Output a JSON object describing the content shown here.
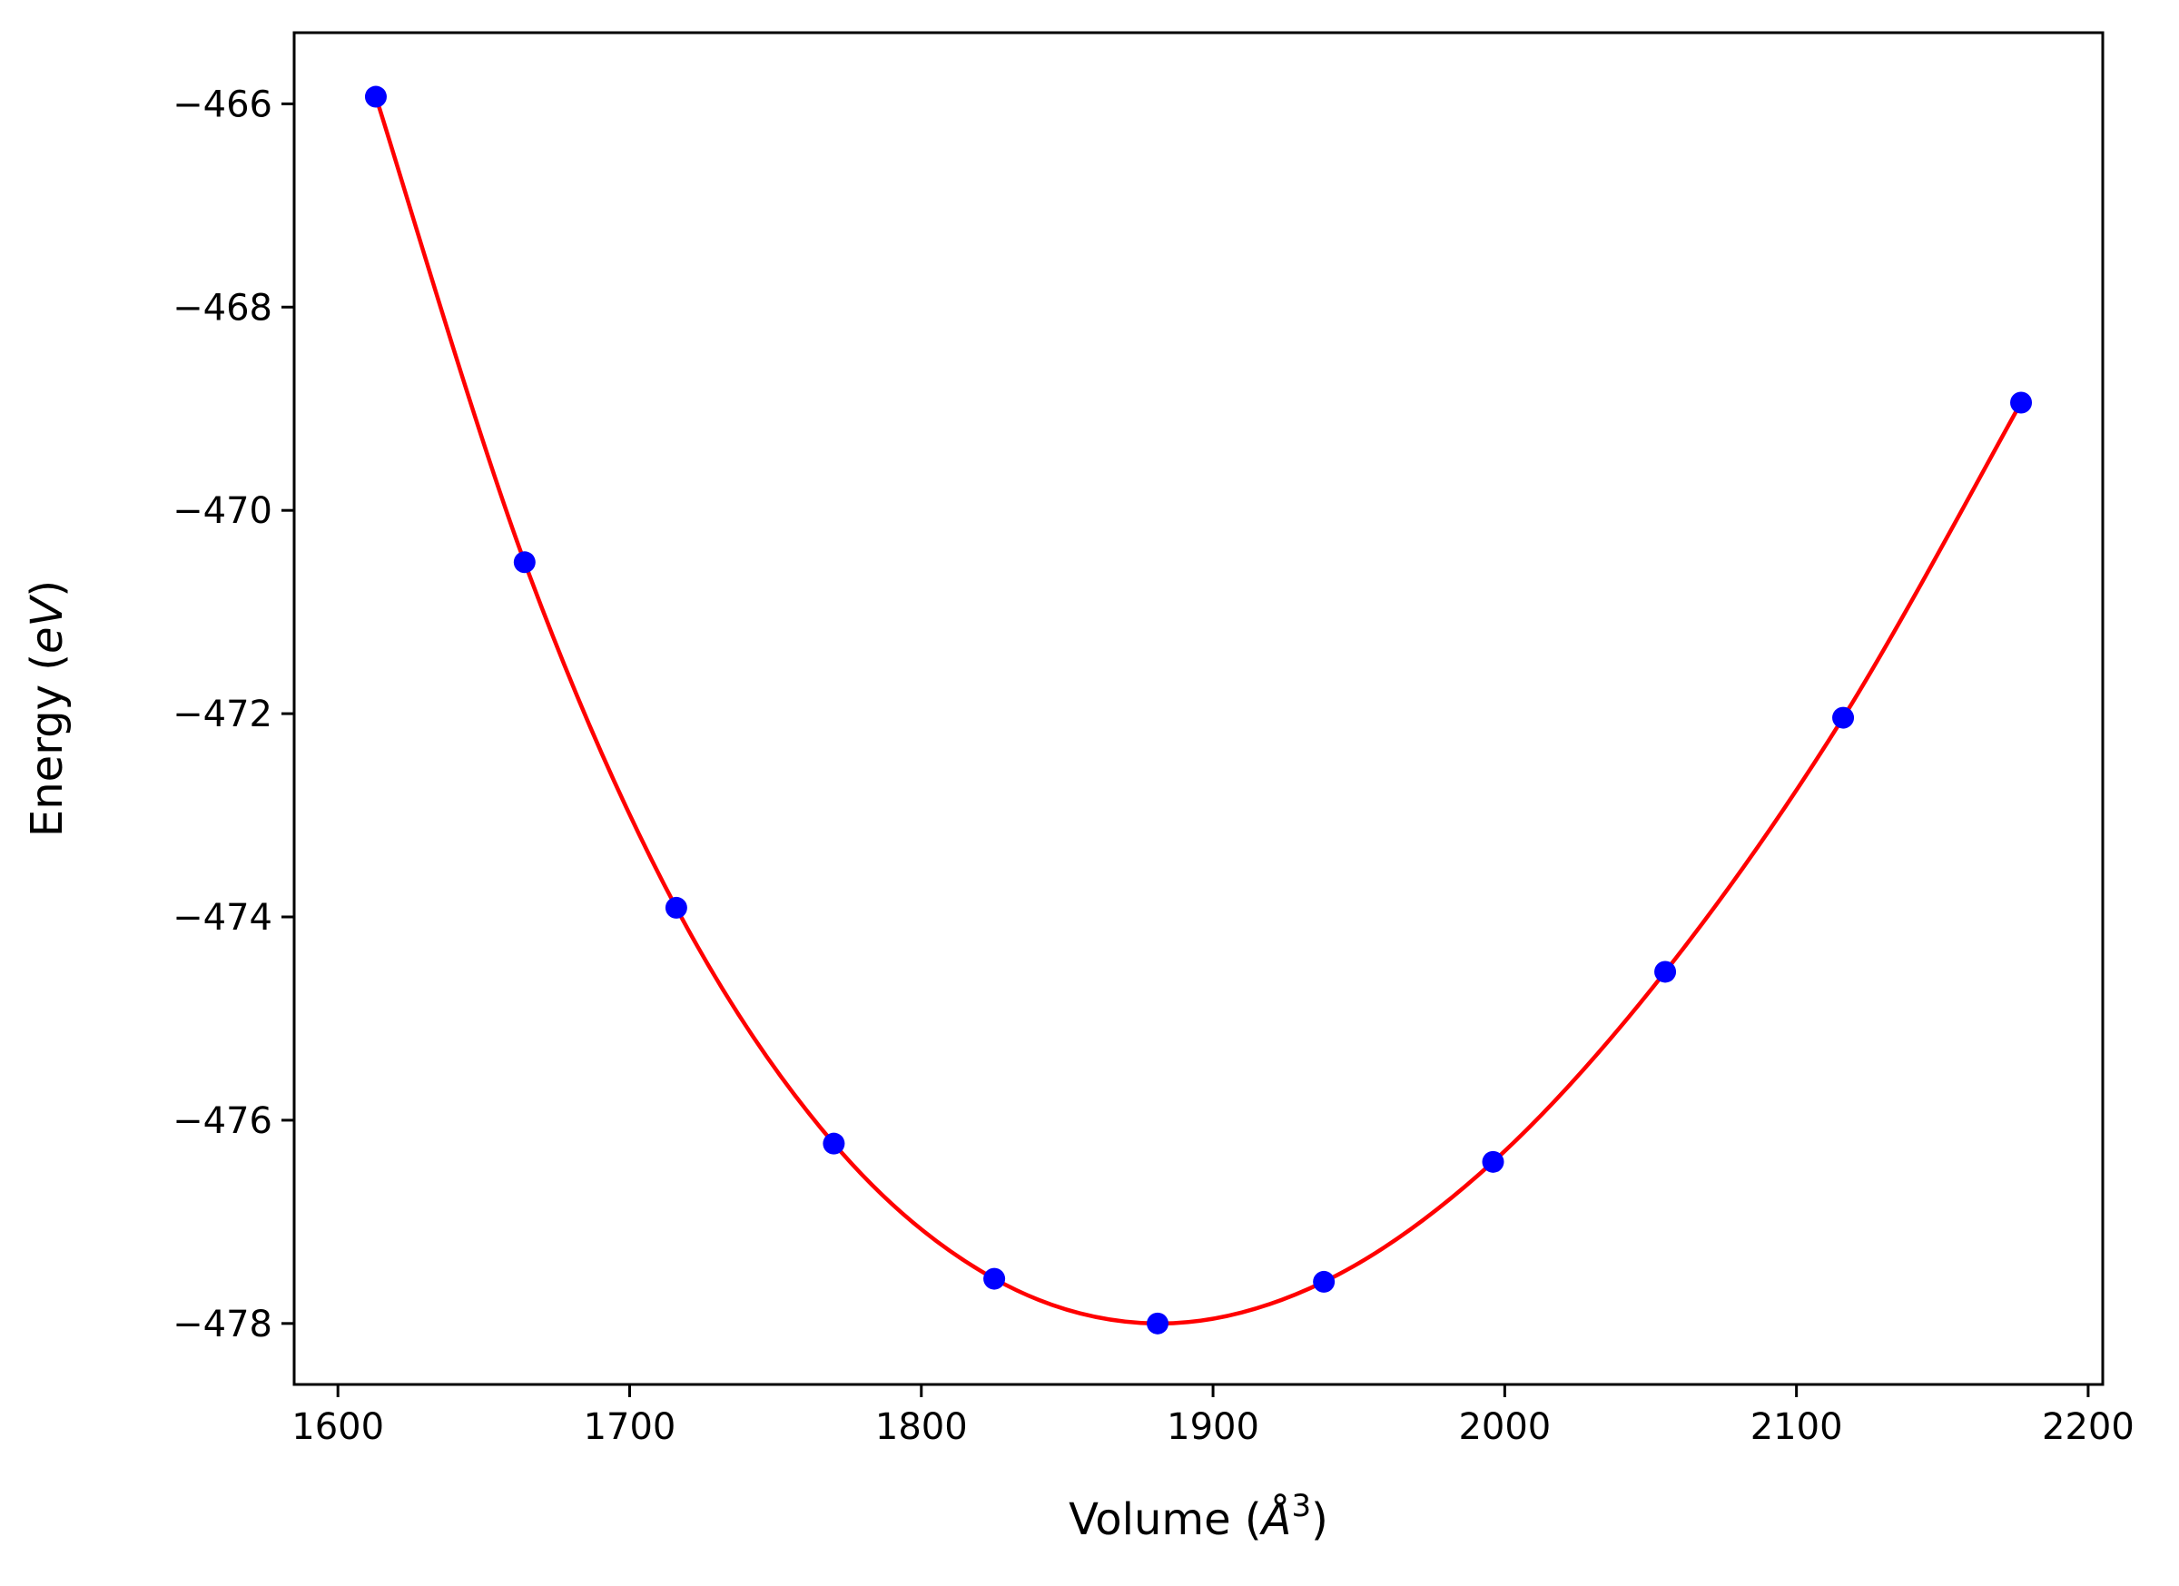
{
  "chart_data": {
    "type": "scatter",
    "title": "",
    "xlabel": "Volume (",
    "xlabel_unit_base": "Å",
    "xlabel_unit_exp": "3",
    "xlabel_close": ")",
    "ylabel": "Energy (",
    "ylabel_unit": "eV",
    "ylabel_close": ")",
    "xlim": [
      1585,
      2205
    ],
    "ylim": [
      -478.6,
      -465.3
    ],
    "xticks": [
      1600,
      1700,
      1800,
      1900,
      2000,
      2100,
      2200
    ],
    "yticks": [
      -466,
      -468,
      -470,
      -472,
      -474,
      -476,
      -478
    ],
    "grid": false,
    "series": [
      {
        "kind": "points",
        "color": "#0000ff",
        "x": [
          1613,
          1664,
          1716,
          1770,
          1825,
          1881,
          1938,
          1996,
          2055,
          2116,
          2177
        ],
        "y": [
          -465.93,
          -470.51,
          -473.91,
          -476.23,
          -477.56,
          -478.0,
          -477.59,
          -476.41,
          -474.54,
          -472.04,
          -468.94
        ]
      },
      {
        "kind": "fit-curve",
        "color": "#ff0000",
        "vmin": 1880.5,
        "emin": -478.0
      }
    ]
  }
}
